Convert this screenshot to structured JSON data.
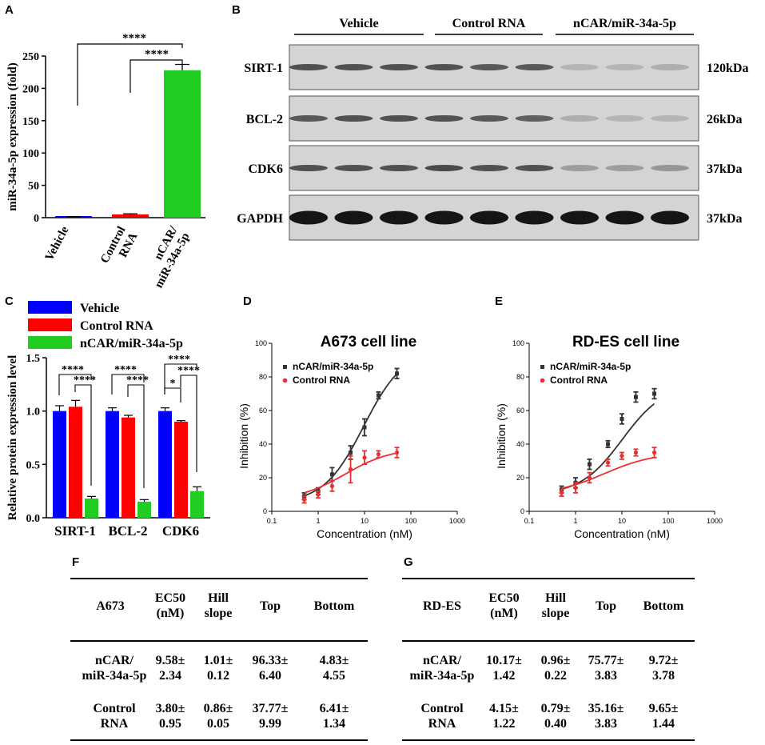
{
  "panel_labels": {
    "a": "A",
    "b": "B",
    "c": "C",
    "d": "D",
    "e": "E",
    "f": "F",
    "g": "G"
  },
  "colors": {
    "vehicle": "#0000ff",
    "control": "#ff0000",
    "ncar": "#22cc22",
    "black_curve": "#333333",
    "red_curve": "#e83030"
  },
  "chart_data": [
    {
      "id": "A",
      "type": "bar",
      "ylabel": "miR-34a-5p expression (fold)",
      "ylim": [
        0,
        250
      ],
      "yticks": [
        "0",
        "50",
        "100",
        "150",
        "200",
        "250"
      ],
      "categories": [
        "Vehicle",
        "Control RNA",
        "nCAR/ miR-34a-5p"
      ],
      "category_lines": [
        [
          "Vehicle"
        ],
        [
          "Control",
          "RNA"
        ],
        [
          "nCAR/",
          "miR-34a-5p"
        ]
      ],
      "values": [
        1,
        5,
        228
      ],
      "errors": [
        0.5,
        1,
        9
      ],
      "significance": [
        "****",
        "****"
      ]
    },
    {
      "id": "C",
      "type": "bar",
      "ylabel": "Relative protein expression level",
      "ylim": [
        0,
        1.5
      ],
      "yticks": [
        "0.0",
        "0.5",
        "1.0",
        "1.5"
      ],
      "categories": [
        "SIRT-1",
        "BCL-2",
        "CDK6"
      ],
      "series": [
        {
          "name": "Vehicle",
          "values": [
            1.0,
            1.0,
            1.0
          ],
          "errors": [
            0.05,
            0.03,
            0.03
          ]
        },
        {
          "name": "Control RNA",
          "values": [
            1.04,
            0.94,
            0.9
          ],
          "errors": [
            0.06,
            0.02,
            0.01
          ]
        },
        {
          "name": "nCAR/miR-34a-5p",
          "values": [
            0.18,
            0.15,
            0.25
          ],
          "errors": [
            0.02,
            0.02,
            0.04
          ]
        }
      ],
      "significance": [
        [
          "****",
          "****"
        ],
        [
          "****",
          "****"
        ],
        [
          "****",
          "*",
          "****"
        ]
      ]
    },
    {
      "id": "D",
      "type": "line",
      "title": "A673 cell line",
      "xlabel": "Concentration (nM)",
      "ylabel": "Inhibition (%)",
      "xlim": [
        0.1,
        1000
      ],
      "ylim": [
        0,
        100
      ],
      "xscale": "log",
      "xticks": [
        "0.1",
        "1",
        "10",
        "100",
        "1000"
      ],
      "yticks": [
        "0",
        "20",
        "40",
        "60",
        "80",
        "100"
      ],
      "series": [
        {
          "name": "nCAR/miR-34a-5p",
          "x": [
            0.5,
            1,
            2,
            5,
            10,
            20,
            50
          ],
          "y": [
            9,
            12,
            22,
            35,
            50,
            69,
            82
          ],
          "err": [
            2,
            2,
            4,
            4,
            5,
            2,
            3
          ],
          "fit": {
            "bottom": 4.83,
            "top": 96.33,
            "ec50": 9.58,
            "hill": 1.01
          }
        },
        {
          "name": "Control RNA",
          "x": [
            0.5,
            1,
            2,
            5,
            10,
            20,
            50
          ],
          "y": [
            7,
            10,
            15,
            25,
            32,
            34,
            35
          ],
          "err": [
            2,
            2,
            3,
            8,
            4,
            2,
            3
          ],
          "fit": {
            "bottom": 6.41,
            "top": 37.77,
            "ec50": 3.8,
            "hill": 0.86
          }
        }
      ]
    },
    {
      "id": "E",
      "type": "line",
      "title": "RD-ES cell line",
      "xlabel": "Concentration (nM)",
      "ylabel": "Inhibition (%)",
      "xlim": [
        0.1,
        1000
      ],
      "ylim": [
        0,
        100
      ],
      "xscale": "log",
      "xticks": [
        "0.1",
        "1",
        "10",
        "100",
        "1000"
      ],
      "yticks": [
        "0",
        "20",
        "40",
        "60",
        "80",
        "100"
      ],
      "series": [
        {
          "name": "nCAR/miR-34a-5p",
          "x": [
            0.5,
            1,
            2,
            5,
            10,
            20,
            50
          ],
          "y": [
            13,
            17,
            28,
            40,
            55,
            68,
            70
          ],
          "err": [
            2,
            3,
            3,
            2,
            3,
            3,
            3
          ],
          "fit": {
            "bottom": 9.72,
            "top": 75.77,
            "ec50": 10.17,
            "hill": 0.96
          }
        },
        {
          "name": "Control RNA",
          "x": [
            0.5,
            1,
            2,
            5,
            10,
            20,
            50
          ],
          "y": [
            11,
            14,
            20,
            29,
            33,
            35,
            35
          ],
          "err": [
            2,
            3,
            3,
            2,
            2,
            2,
            3
          ],
          "fit": {
            "bottom": 9.65,
            "top": 35.16,
            "ec50": 4.15,
            "hill": 0.79
          }
        }
      ]
    }
  ],
  "blot": {
    "groups": [
      "Vehicle",
      "Control RNA",
      "nCAR/miR-34a-5p"
    ],
    "rows": [
      {
        "name": "SIRT-1",
        "size": "120kDa",
        "intensity": [
          0.85,
          0.85,
          0.85,
          0.85,
          0.8,
          0.8,
          0.2,
          0.2,
          0.25
        ]
      },
      {
        "name": "BCL-2",
        "size": "26kDa",
        "intensity": [
          0.8,
          0.85,
          0.85,
          0.85,
          0.8,
          0.75,
          0.25,
          0.2,
          0.2
        ]
      },
      {
        "name": "CDK6",
        "size": "37kDa",
        "intensity": [
          0.85,
          0.85,
          0.85,
          0.9,
          0.85,
          0.85,
          0.35,
          0.35,
          0.4
        ]
      },
      {
        "name": "GAPDH",
        "size": "37kDa",
        "intensity": [
          1,
          1,
          1,
          1,
          1,
          1,
          1,
          1,
          1
        ]
      }
    ]
  },
  "tables": {
    "f": {
      "headers": [
        "A673",
        "EC50\n(nM)",
        "Hill\nslope",
        "Top",
        "Bottom"
      ],
      "rows": [
        [
          "nCAR/\nmiR-34a-5p",
          "9.58±\n2.34",
          "1.01±\n0.12",
          "96.33±\n6.40",
          "4.83±\n4.55"
        ],
        [
          "Control\nRNA",
          "3.80±\n0.95",
          "0.86±\n0.05",
          "37.77±\n9.99",
          "6.41±\n1.34"
        ]
      ]
    },
    "g": {
      "headers": [
        "RD-ES",
        "EC50\n(nM)",
        "Hill\nslope",
        "Top",
        "Bottom"
      ],
      "rows": [
        [
          "nCAR/\nmiR-34a-5p",
          "10.17±\n1.42",
          "0.96±\n0.22",
          "75.77±\n3.83",
          "9.72±\n3.78"
        ],
        [
          "Control\nRNA",
          "4.15±\n1.22",
          "0.79±\n0.40",
          "35.16±\n3.83",
          "9.65±\n1.44"
        ]
      ]
    }
  }
}
